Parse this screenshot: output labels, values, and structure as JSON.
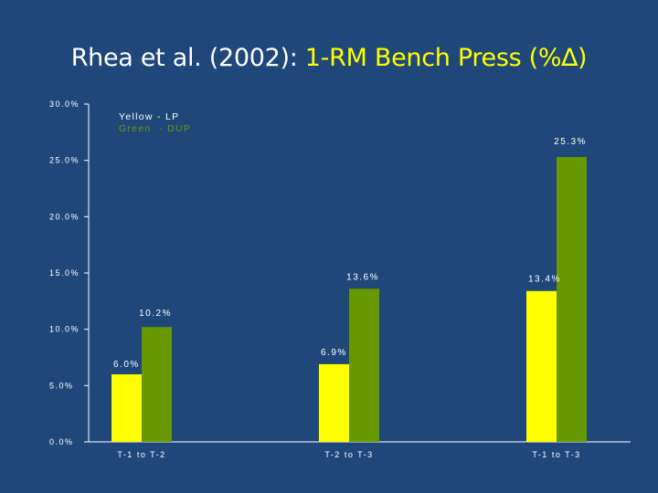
{
  "title": {
    "prefix": "Rhea et al. (2002): ",
    "highlight": "1-RM Bench Press (%∆)"
  },
  "legend": [
    {
      "text": "Yellow - LP",
      "color": "#ffffff"
    },
    {
      "text": "Green  - DUP",
      "color": "#6a9a00"
    }
  ],
  "colors": {
    "lp": "#ffff00",
    "dup": "#669900",
    "axis": "#ffffff",
    "background": "#1f477a"
  },
  "chart_data": {
    "type": "bar",
    "categories": [
      "T-1 to T-2",
      "T-2 to T-3",
      "T-1 to T-3"
    ],
    "series": [
      {
        "values": [
          6.0,
          6.9,
          13.4
        ],
        "labels": [
          "6.0%",
          "6.9%",
          "13.4%"
        ],
        "color": "#ffff00"
      },
      {
        "values": [
          10.2,
          13.6,
          25.3
        ],
        "labels": [
          "10.2%",
          "13.6%",
          "25.3%"
        ],
        "color": "#669900"
      }
    ],
    "ylim": [
      0,
      30
    ],
    "yticks": [
      0,
      5,
      10,
      15,
      20,
      25,
      30
    ],
    "ytick_labels": [
      "0.0%",
      "5.0%",
      "10.0%",
      "15.0%",
      "20.0%",
      "25.0%",
      "30.0%"
    ],
    "grid": false,
    "legend_position": "top-left"
  }
}
